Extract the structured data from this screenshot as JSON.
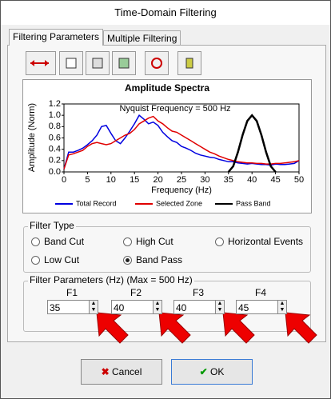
{
  "window": {
    "title": "Time-Domain Filtering"
  },
  "tabs": [
    "Filtering Parameters",
    "Multiple Filtering"
  ],
  "chart_data": {
    "type": "line",
    "title": "Amplitude Spectra",
    "annotation": "Nyquist Frequency = 500 Hz",
    "x_label": "Frequency (Hz)",
    "y_label": "Amplitude (Norm)",
    "xlim": [
      0,
      50
    ],
    "ylim": [
      0,
      1.2
    ],
    "xticks": [
      0,
      5,
      10,
      15,
      20,
      25,
      30,
      35,
      40,
      45,
      50
    ],
    "yticks": [
      {
        "value": 0,
        "label": "0.0"
      },
      0.2,
      0.4,
      0.6,
      0.8,
      {
        "value": 1,
        "label": "1.0"
      },
      1.2
    ],
    "series": [
      {
        "name": "Total Record",
        "color": "#0000e0",
        "x": [
          0,
          1,
          2,
          3,
          4,
          5,
          6,
          7,
          8,
          9,
          10,
          11,
          12,
          13,
          14,
          15,
          16,
          17,
          18,
          19,
          20,
          21,
          22,
          23,
          24,
          25,
          26,
          27,
          28,
          29,
          30,
          31,
          32,
          33,
          34,
          35,
          36,
          37,
          38,
          39,
          40,
          41,
          42,
          43,
          44,
          45,
          46,
          47,
          48,
          49,
          50
        ],
        "values": [
          0.05,
          0.35,
          0.35,
          0.38,
          0.42,
          0.48,
          0.55,
          0.65,
          0.8,
          0.82,
          0.68,
          0.55,
          0.5,
          0.6,
          0.72,
          0.85,
          1.0,
          0.93,
          0.85,
          0.88,
          0.82,
          0.7,
          0.62,
          0.55,
          0.52,
          0.45,
          0.42,
          0.38,
          0.33,
          0.3,
          0.28,
          0.26,
          0.25,
          0.22,
          0.2,
          0.18,
          0.18,
          0.16,
          0.15,
          0.14,
          0.15,
          0.14,
          0.13,
          0.13,
          0.12,
          0.14,
          0.13,
          0.13,
          0.14,
          0.15,
          0.2
        ]
      },
      {
        "name": "Selected Zone",
        "color": "#e00000",
        "x": [
          0,
          1,
          2,
          3,
          4,
          5,
          6,
          7,
          8,
          9,
          10,
          11,
          12,
          13,
          14,
          15,
          16,
          17,
          18,
          19,
          20,
          21,
          22,
          23,
          24,
          25,
          26,
          27,
          28,
          29,
          30,
          31,
          32,
          33,
          34,
          35,
          36,
          37,
          38,
          39,
          40,
          41,
          42,
          43,
          44,
          45,
          46,
          47,
          48,
          49,
          50
        ],
        "values": [
          0.05,
          0.3,
          0.32,
          0.35,
          0.38,
          0.45,
          0.5,
          0.52,
          0.5,
          0.48,
          0.5,
          0.55,
          0.6,
          0.65,
          0.68,
          0.75,
          0.85,
          0.9,
          0.95,
          0.98,
          0.9,
          0.85,
          0.78,
          0.72,
          0.7,
          0.65,
          0.6,
          0.55,
          0.5,
          0.45,
          0.4,
          0.35,
          0.32,
          0.28,
          0.25,
          0.22,
          0.2,
          0.18,
          0.17,
          0.16,
          0.16,
          0.15,
          0.15,
          0.14,
          0.14,
          0.15,
          0.15,
          0.16,
          0.17,
          0.18,
          0.2
        ]
      },
      {
        "name": "Pass Band",
        "color": "#000000",
        "x": [
          35,
          36,
          37,
          38,
          39,
          40,
          41,
          42,
          43,
          44,
          45
        ],
        "values": [
          0,
          0.1,
          0.35,
          0.65,
          0.9,
          1.0,
          0.9,
          0.65,
          0.35,
          0.1,
          0
        ]
      }
    ]
  },
  "filter_type": {
    "label": "Filter Type",
    "options": [
      "Band Cut",
      "High Cut",
      "Horizontal Events",
      "Low Cut",
      "Band Pass"
    ],
    "selected": 4
  },
  "filter_parameters": {
    "label": "Filter Parameters (Hz) (Max = 500 Hz)",
    "fields": [
      {
        "label": "F1",
        "value": 35
      },
      {
        "label": "F2",
        "value": 40
      },
      {
        "label": "F3",
        "value": 40
      },
      {
        "label": "F4",
        "value": 45
      }
    ]
  },
  "buttons": {
    "cancel": "Cancel",
    "ok": "OK"
  }
}
